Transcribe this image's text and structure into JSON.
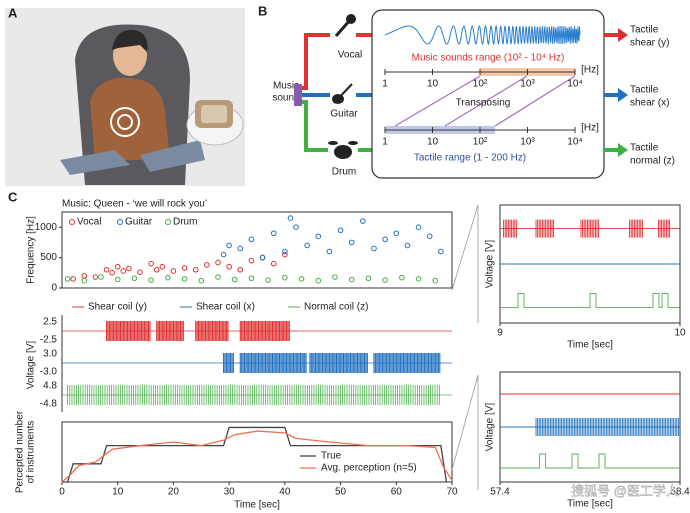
{
  "panel_labels": {
    "a": "A",
    "b": "B",
    "c": "C"
  },
  "diagram": {
    "music_sound": [
      "Music",
      "sound"
    ],
    "instruments": [
      "Vocal",
      "Guitar",
      "Drum"
    ],
    "music_range": "Music sounds range (10² - 10⁴ Hz)",
    "transposing": "Transposing",
    "tactile_range": "Tactile range (1 - 200 Hz)",
    "hz": "[Hz]",
    "axis_ticks": [
      "1",
      "10",
      "10²",
      "10³",
      "10⁴"
    ],
    "outputs": [
      [
        "Tactile",
        "shear (y)"
      ],
      [
        "Tactile",
        "shear (x)"
      ],
      [
        "Tactile",
        "normal (z)"
      ]
    ]
  },
  "watermark": "搜狐号 @医工学人",
  "chart_data": [
    {
      "type": "scatter",
      "title": "Music: Queen - ‘we will rock you’",
      "y_label": "Frequency [Hz]",
      "xlim": [
        0,
        70
      ],
      "ylim": [
        0,
        1250
      ],
      "yticks": [
        0,
        500,
        1000
      ],
      "series": [
        {
          "name": "Vocal",
          "color": "#e03030",
          "x": [
            2,
            4,
            6,
            8,
            9,
            10,
            11,
            12,
            14,
            16,
            17,
            18,
            20,
            22,
            24,
            26,
            28,
            30,
            32,
            34,
            36,
            38,
            40
          ],
          "values": [
            150,
            200,
            180,
            300,
            250,
            350,
            280,
            320,
            260,
            400,
            300,
            350,
            280,
            330,
            300,
            380,
            420,
            350,
            300,
            450,
            500,
            400,
            550
          ]
        },
        {
          "name": "Guitar",
          "color": "#2070c0",
          "x": [
            29,
            30,
            32,
            34,
            36,
            38,
            40,
            41,
            42,
            44,
            46,
            48,
            50,
            52,
            54,
            56,
            58,
            60,
            62,
            64,
            66,
            68
          ],
          "values": [
            550,
            700,
            650,
            800,
            500,
            900,
            600,
            1150,
            1000,
            700,
            850,
            600,
            950,
            750,
            1100,
            650,
            800,
            900,
            700,
            1000,
            850,
            600
          ]
        },
        {
          "name": "Drum",
          "color": "#40b040",
          "x": [
            1,
            4,
            7,
            10,
            13,
            16,
            19,
            22,
            25,
            28,
            31,
            34,
            37,
            40,
            43,
            46,
            49,
            52,
            55,
            58,
            61,
            64,
            67
          ],
          "values": [
            150,
            120,
            180,
            140,
            160,
            130,
            170,
            150,
            120,
            180,
            140,
            160,
            130,
            170,
            150,
            120,
            180,
            140,
            160,
            130,
            170,
            150,
            120
          ]
        }
      ]
    },
    {
      "type": "bursts",
      "y_label": "Voltage [V]",
      "xlim": [
        0,
        70
      ],
      "series": [
        {
          "name": "Shear coil (y)",
          "color": "#e03030",
          "yticks": [
            "2.5",
            "-2.5"
          ],
          "bursts": [
            [
              8,
              16
            ],
            [
              17,
              22
            ],
            [
              24,
              30
            ],
            [
              32,
              41
            ]
          ]
        },
        {
          "name": "Shear coil (x)",
          "color": "#2070c0",
          "yticks": [
            "3.0",
            "-3.0"
          ],
          "bursts": [
            [
              29,
              31
            ],
            [
              32,
              44
            ],
            [
              44.5,
              55
            ],
            [
              56,
              68
            ]
          ]
        },
        {
          "name": "Normal coil (z)",
          "color": "#50b050",
          "yticks": [
            "4.8",
            "-4.8"
          ],
          "bursts": [
            [
              1,
              68
            ]
          ]
        }
      ]
    },
    {
      "type": "line",
      "y_label": [
        "Percepted number",
        "of instruments"
      ],
      "x_label": "Time [sec]",
      "xlim": [
        0,
        70
      ],
      "ylim": [
        0,
        3.3
      ],
      "xticks": [
        0,
        10,
        20,
        30,
        40,
        50,
        60,
        70
      ],
      "series": [
        {
          "name": "True",
          "color": "#444444",
          "x": [
            0,
            1,
            2,
            7,
            8,
            29,
            30,
            40,
            41,
            68,
            69
          ],
          "values": [
            0,
            0,
            1,
            1,
            2,
            2,
            3,
            3,
            2,
            2,
            0
          ]
        },
        {
          "name": "Avg. perception (n=5)",
          "color": "#f07050",
          "x": [
            0,
            1.5,
            3,
            6,
            9,
            14,
            20,
            25,
            29,
            31,
            35,
            40,
            42,
            48,
            55,
            62,
            67,
            68.5,
            70
          ],
          "values": [
            0,
            0.4,
            0.9,
            1.1,
            1.8,
            2,
            2.2,
            2,
            2.3,
            2.6,
            2.8,
            2.7,
            2.4,
            2.2,
            2,
            2,
            1.9,
            0.8,
            0.1
          ]
        }
      ]
    },
    {
      "type": "zoom",
      "y_label": "Voltage [V]",
      "x_label": "Time [sec]",
      "xlim": [
        9,
        10
      ],
      "xticks": [
        9,
        10
      ],
      "series": [
        {
          "color": "#e03030",
          "bursts": [
            [
              9.02,
              9.1
            ],
            [
              9.2,
              9.3
            ],
            [
              9.45,
              9.55
            ],
            [
              9.72,
              9.8
            ],
            [
              9.88,
              9.95
            ]
          ]
        },
        {
          "color": "#2070c0",
          "bursts": []
        },
        {
          "color": "#50b050",
          "pulses": [
            9.1,
            9.5,
            9.85,
            9.9
          ]
        }
      ]
    },
    {
      "type": "zoom",
      "y_label": "Voltage [V]",
      "x_label": "Time [sec]",
      "xlim": [
        57.4,
        58.4
      ],
      "xticks": [
        {
          "value": 57.4,
          "label": "57.4"
        },
        {
          "value": 58.4,
          "label": "58.4"
        }
      ],
      "series": [
        {
          "color": "#e03030",
          "bursts": []
        },
        {
          "color": "#2070c0",
          "bursts": [
            [
              57.6,
              58.4
            ]
          ]
        },
        {
          "color": "#50b050",
          "pulses": [
            57.62,
            57.8,
            57.95
          ]
        }
      ]
    }
  ]
}
